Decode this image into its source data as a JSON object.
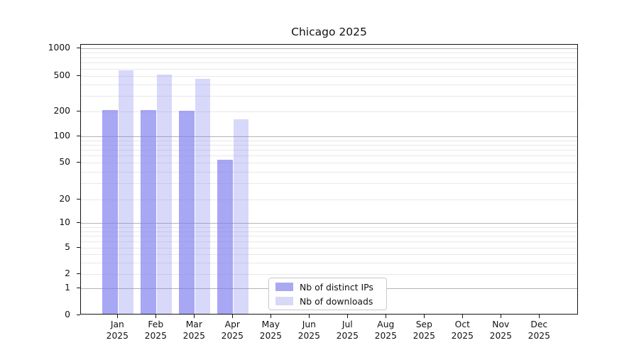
{
  "title": "Chicago 2025",
  "legend": {
    "items": [
      {
        "label": "Nb of distinct IPs",
        "swatch_color": "#a9a9f2"
      },
      {
        "label": "Nb of downloads",
        "swatch_color": "#d8d8f7"
      }
    ]
  },
  "colors": {
    "bar_distinct_ips": "rgba(126,126,239,0.68)",
    "bar_downloads": "rgba(126,126,239,0.30)",
    "grid_major": "#b4b4b4",
    "grid_minor": "#e8e8e8",
    "axis": "#141414",
    "background": "#ffffff"
  },
  "chart_data": {
    "type": "bar",
    "title": "Chicago 2025",
    "categories": [
      "Jan 2025",
      "Feb 2025",
      "Mar 2025",
      "Apr 2025",
      "May 2025",
      "Jun 2025",
      "Jul 2025",
      "Aug 2025",
      "Sep 2025",
      "Oct 2025",
      "Nov 2025",
      "Dec 2025"
    ],
    "series": [
      {
        "name": "Nb of distinct IPs",
        "values": [
          200,
          200,
          195,
          52,
          null,
          null,
          null,
          null,
          null,
          null,
          null,
          null
        ]
      },
      {
        "name": "Nb of downloads",
        "values": [
          560,
          500,
          450,
          155,
          null,
          null,
          null,
          null,
          null,
          null,
          null,
          null
        ]
      }
    ],
    "xlabel": "",
    "ylabel": "",
    "y_scale": "symlog",
    "ylim": [
      0,
      1000
    ],
    "y_ticks": [
      0,
      1,
      2,
      5,
      10,
      20,
      50,
      100,
      200,
      500,
      1000
    ],
    "y_major_gridlines": [
      1,
      10,
      100,
      1000
    ],
    "y_minor_gridlines": [
      2,
      3,
      4,
      5,
      6,
      7,
      8,
      9,
      20,
      30,
      40,
      50,
      60,
      70,
      80,
      90,
      200,
      300,
      400,
      500,
      600,
      700,
      800,
      900
    ],
    "grid": true,
    "legend_position": "lower center-left, inside axes"
  }
}
